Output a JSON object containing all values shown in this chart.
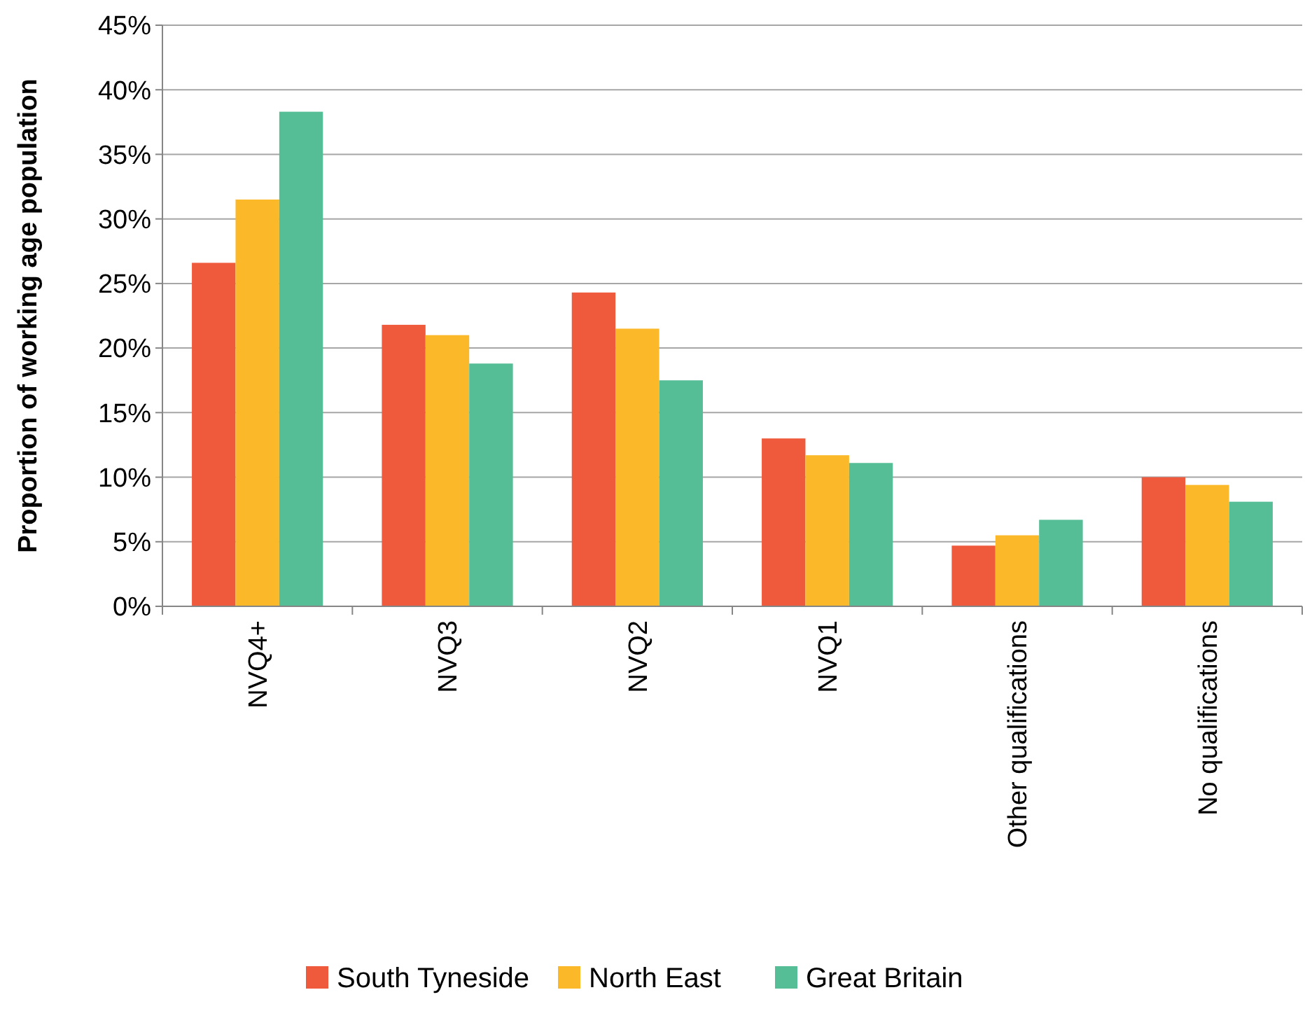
{
  "chart_data": {
    "type": "bar",
    "ylabel": "Proportion of working age population",
    "categories": [
      "NVQ4+",
      "NVQ3",
      "NVQ2",
      "NVQ1",
      "Other qualifications",
      "No qualifications"
    ],
    "series": [
      {
        "name": "South Tyneside",
        "color": "#f05a3c",
        "values": [
          26.6,
          21.8,
          24.3,
          13.0,
          4.7,
          10.0
        ]
      },
      {
        "name": "North East",
        "color": "#fbb829",
        "values": [
          31.5,
          21.0,
          21.5,
          11.7,
          5.5,
          9.4
        ]
      },
      {
        "name": "Great Britain",
        "color": "#55be96",
        "values": [
          38.3,
          18.8,
          17.5,
          11.1,
          6.7,
          8.1
        ]
      }
    ],
    "ylim": [
      0,
      45
    ],
    "yticks": [
      {
        "value": 0,
        "label": "0%"
      },
      {
        "value": 5,
        "label": "5%"
      },
      {
        "value": 10,
        "label": "10%"
      },
      {
        "value": 15,
        "label": "15%"
      },
      {
        "value": 20,
        "label": "20%"
      },
      {
        "value": 25,
        "label": "25%"
      },
      {
        "value": 30,
        "label": "30%"
      },
      {
        "value": 35,
        "label": "35%"
      },
      {
        "value": 40,
        "label": "40%"
      },
      {
        "value": 45,
        "label": "45%"
      }
    ],
    "grid": "y",
    "legend": "bottom"
  }
}
